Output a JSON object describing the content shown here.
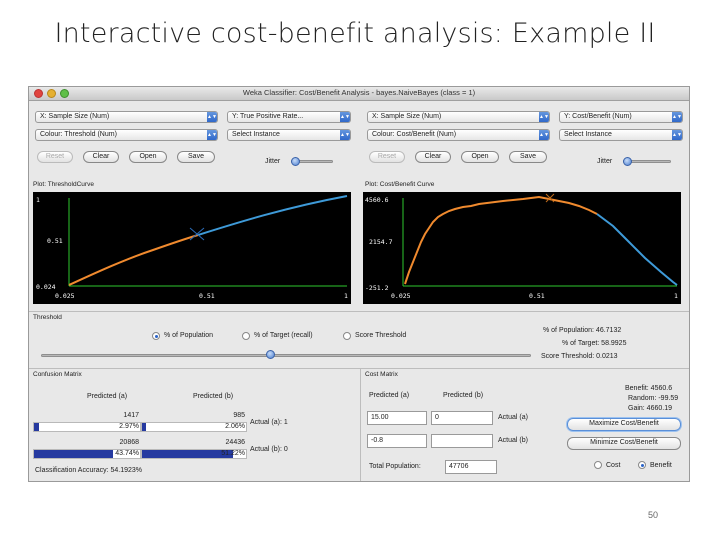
{
  "slide": {
    "title": "Interactive cost-benefit analysis: Example II",
    "page_number": "50"
  },
  "window": {
    "title": "Weka Classifier: Cost/Benefit Analysis - bayes.NaiveBayes (class = 1)"
  },
  "left_panel": {
    "x_select": "X: Sample Size (Num)",
    "y_select": "Y: True Positive Rate...",
    "colour_select": "Colour: Threshold (Num)",
    "instance_select": "Select Instance",
    "reset": "Reset",
    "clear": "Clear",
    "open": "Open",
    "save": "Save",
    "jitter": "Jitter",
    "plot_label": "Plot: ThresholdCurve",
    "y_ticks": [
      "1",
      "0.51",
      "0.024"
    ],
    "x_ticks": [
      "0.025",
      "0.51",
      "1"
    ]
  },
  "right_panel": {
    "x_select": "X: Sample Size (Num)",
    "y_select": "Y: Cost/Benefit (Num)",
    "colour_select": "Colour: Cost/Benefit (Num)",
    "instance_select": "Select Instance",
    "reset": "Reset",
    "clear": "Clear",
    "open": "Open",
    "save": "Save",
    "jitter": "Jitter",
    "plot_label": "Plot: Cost/Benefit Curve",
    "y_ticks": [
      "4560.6",
      "2154.7",
      "-251.2"
    ],
    "x_ticks": [
      "0.025",
      "0.51",
      "1"
    ]
  },
  "threshold": {
    "label": "Threshold",
    "opt_population": "% of Population",
    "opt_target": "% of Target (recall)",
    "opt_score": "Score Threshold",
    "pct_population": "% of Population: 46.7132",
    "pct_target": "% of Target: 58.9925",
    "score_threshold": "Score Threshold: 0.0213",
    "slider_value": 0.467
  },
  "confusion": {
    "label": "Confusion Matrix",
    "pred_a": "Predicted (a)",
    "pred_b": "Predicted (b)",
    "a_a": "1417",
    "a_a_pct": "2.97%",
    "a_b": "985",
    "a_b_pct": "2.06%",
    "b_a": "20868",
    "b_a_pct": "43.74%",
    "b_b": "24436",
    "b_b_pct": "51.22%",
    "actual_a": "Actual (a): 1",
    "actual_b": "Actual (b): 0",
    "accuracy": "Classification Accuracy: 54.1923%",
    "bar_fractions": {
      "a_a": 0.0297,
      "a_b": 0.0206,
      "b_a": 0.4374,
      "b_b": 0.5122
    }
  },
  "cost": {
    "label": "Cost Matrix",
    "pred_a": "Predicted (a)",
    "pred_b": "Predicted (b)",
    "m00": "15.00",
    "m01": "0",
    "m10": "-0.8",
    "m11": "",
    "actual_a": "Actual (a)",
    "actual_b": "Actual (b)",
    "benefit": "Benefit: 4560.6",
    "random": "Random: -99.59",
    "gain": "Gain: 4660.19",
    "maximize": "Maximize Cost/Benefit",
    "minimize": "Minimize Cost/Benefit",
    "total_label": "Total Population:",
    "total_value": "47706",
    "opt_cost": "Cost",
    "opt_benefit": "Benefit"
  },
  "colors": {
    "low": "#f08a2e",
    "high": "#3e9ad8",
    "axis": "#2ec82e"
  }
}
